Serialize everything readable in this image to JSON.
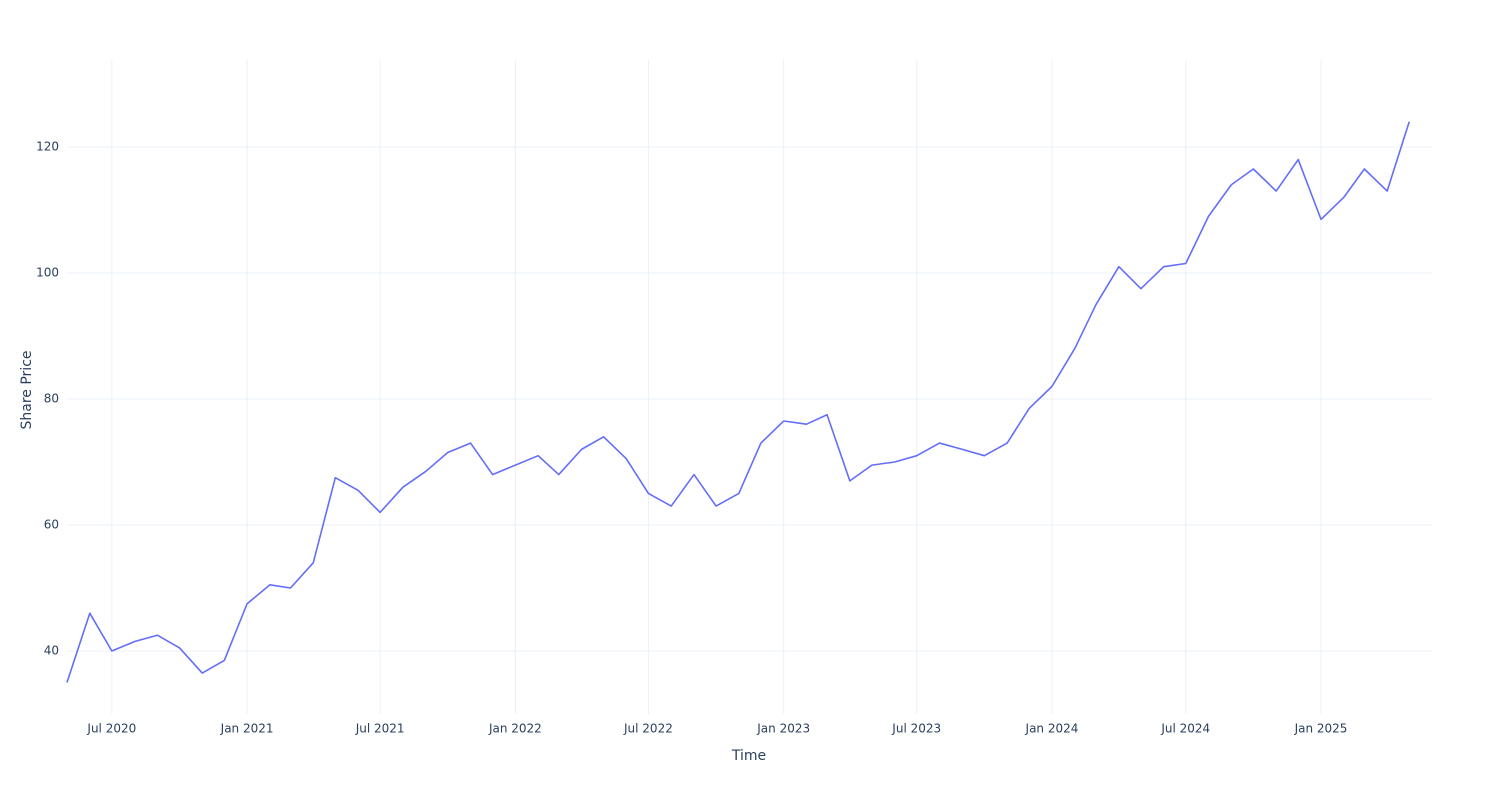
{
  "chart_data": {
    "type": "line",
    "x_label": "Time",
    "y_label": "Share Price",
    "x": [
      "2020-05",
      "2020-06",
      "2020-07",
      "2020-08",
      "2020-09",
      "2020-10",
      "2020-11",
      "2020-12",
      "2021-01",
      "2021-02",
      "2021-03",
      "2021-04",
      "2021-05",
      "2021-06",
      "2021-07",
      "2021-08",
      "2021-09",
      "2021-10",
      "2021-11",
      "2021-12",
      "2022-01",
      "2022-02",
      "2022-03",
      "2022-04",
      "2022-05",
      "2022-06",
      "2022-07",
      "2022-08",
      "2022-09",
      "2022-10",
      "2022-11",
      "2022-12",
      "2023-01",
      "2023-02",
      "2023-03",
      "2023-04",
      "2023-05",
      "2023-06",
      "2023-07",
      "2023-08",
      "2023-09",
      "2023-10",
      "2023-11",
      "2023-12",
      "2024-01",
      "2024-02",
      "2024-03",
      "2024-04",
      "2024-05",
      "2024-06",
      "2024-07",
      "2024-08",
      "2024-09",
      "2024-10",
      "2024-11",
      "2024-12",
      "2025-01",
      "2025-02",
      "2025-03",
      "2025-04",
      "2025-05"
    ],
    "series": [
      {
        "name": "Share Price",
        "color": "#636efa",
        "values": [
          35,
          46,
          40,
          41.5,
          42.5,
          40.5,
          36.5,
          38.5,
          47.5,
          50.5,
          50,
          54,
          67.5,
          65.5,
          62,
          66,
          68.5,
          71.5,
          73,
          68,
          69.5,
          71,
          68,
          72,
          74,
          70.5,
          65,
          63,
          68,
          63,
          65,
          73,
          76.5,
          76,
          77.5,
          67,
          69.5,
          70,
          71,
          73,
          72,
          71,
          73,
          78.5,
          82,
          88,
          95,
          101,
          97.5,
          101,
          101.5,
          109,
          114,
          116.5,
          113,
          118,
          108.5,
          112,
          116.5,
          113,
          124
        ]
      }
    ],
    "xlim": [
      "2020-05",
      "2025-06"
    ],
    "xticks": [
      {
        "value": "2020-07",
        "label": "Jul 2020"
      },
      {
        "value": "2021-01",
        "label": "Jan 2021"
      },
      {
        "value": "2021-07",
        "label": "Jul 2021"
      },
      {
        "value": "2022-01",
        "label": "Jan 2022"
      },
      {
        "value": "2022-07",
        "label": "Jul 2022"
      },
      {
        "value": "2023-01",
        "label": "Jan 2023"
      },
      {
        "value": "2023-07",
        "label": "Jul 2023"
      },
      {
        "value": "2024-01",
        "label": "Jan 2024"
      },
      {
        "value": "2024-07",
        "label": "Jul 2024"
      },
      {
        "value": "2025-01",
        "label": "Jan 2025"
      }
    ],
    "ylim": [
      30,
      133.8
    ],
    "yticks": [
      40,
      60,
      80,
      100,
      120
    ],
    "grid": true
  }
}
